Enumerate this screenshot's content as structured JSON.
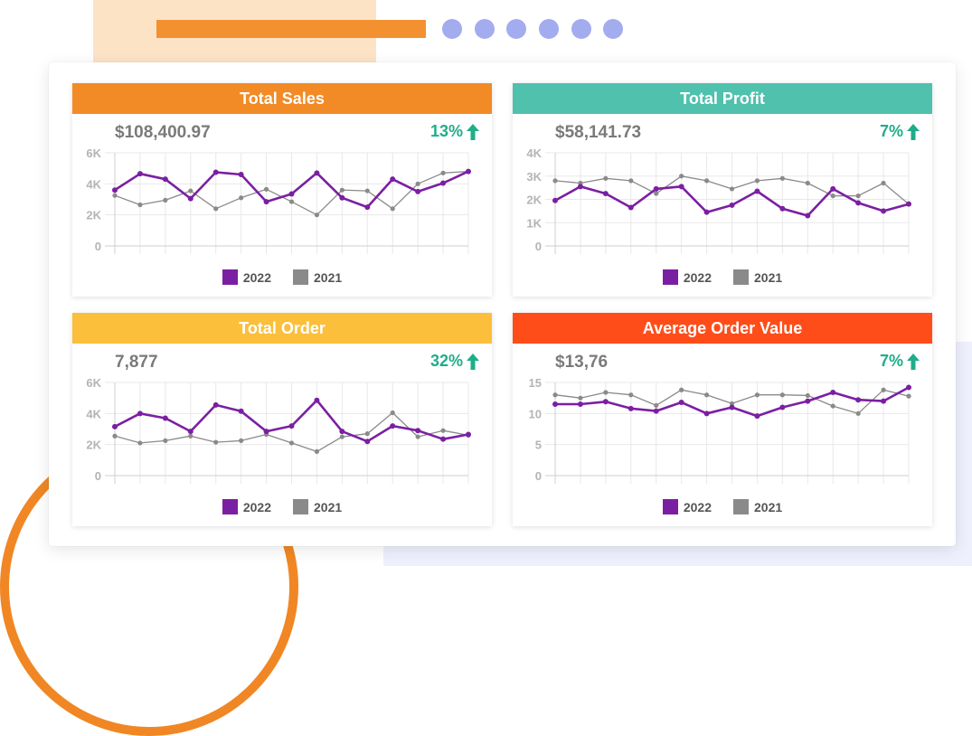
{
  "colors": {
    "series_2022": "#7b1fa2",
    "series_2021": "#8a8a8a",
    "up": "#1fad8a"
  },
  "icons": {
    "change": "arrow-up-icon"
  },
  "chart_data": [
    {
      "type": "line",
      "title": "Total Sales",
      "header_color": "#f28b26",
      "value": "$108,400.97",
      "change": "13%",
      "ylim": [
        0,
        6000
      ],
      "yticks": [
        0,
        2000,
        4000,
        6000
      ],
      "ytick_labels": [
        "0",
        "2K",
        "4K",
        "6K"
      ],
      "grid": true,
      "legend": "bottom-center",
      "series": [
        {
          "name": "2022",
          "values": [
            3600,
            4650,
            4300,
            3050,
            4750,
            4600,
            2850,
            3350,
            4700,
            3100,
            2500,
            4300,
            3500,
            4050,
            4800
          ]
        },
        {
          "name": "2021",
          "values": [
            3250,
            2650,
            2950,
            3550,
            2400,
            3100,
            3650,
            2850,
            2000,
            3600,
            3550,
            2400,
            4000,
            4700,
            4800
          ]
        }
      ]
    },
    {
      "type": "line",
      "title": "Total Profit",
      "header_color": "#4fc1ad",
      "value": "$58,141.73",
      "change": "7%",
      "ylim": [
        0,
        4000
      ],
      "yticks": [
        0,
        1000,
        2000,
        3000,
        4000
      ],
      "ytick_labels": [
        "0",
        "1K",
        "2K",
        "3K",
        "4K"
      ],
      "grid": true,
      "legend": "bottom-center",
      "series": [
        {
          "name": "2022",
          "values": [
            1950,
            2550,
            2250,
            1650,
            2450,
            2550,
            1450,
            1750,
            2350,
            1600,
            1300,
            2450,
            1850,
            1500,
            1800
          ]
        },
        {
          "name": "2021",
          "values": [
            2800,
            2700,
            2900,
            2800,
            2250,
            3000,
            2800,
            2450,
            2800,
            2900,
            2700,
            2150,
            2150,
            2700,
            1800
          ]
        }
      ]
    },
    {
      "type": "line",
      "title": "Total Order",
      "header_color": "#fbbf3c",
      "value": "7,877",
      "change": "32%",
      "ylim": [
        0,
        6000
      ],
      "yticks": [
        0,
        2000,
        4000,
        6000
      ],
      "ytick_labels": [
        "0",
        "2K",
        "4K",
        "6K"
      ],
      "grid": true,
      "legend": "bottom-center",
      "series": [
        {
          "name": "2022",
          "values": [
            3150,
            4000,
            3700,
            2850,
            4550,
            4150,
            2850,
            3200,
            4850,
            2850,
            2200,
            3200,
            2900,
            2350,
            2650
          ]
        },
        {
          "name": "2021",
          "values": [
            2550,
            2100,
            2250,
            2550,
            2150,
            2250,
            2650,
            2100,
            1550,
            2500,
            2700,
            4050,
            2500,
            2900,
            2600
          ]
        }
      ]
    },
    {
      "type": "line",
      "title": "Average Order Value",
      "header_color": "#ff4d1a",
      "value": "$13,76",
      "change": "7%",
      "ylim": [
        0,
        15
      ],
      "yticks": [
        0,
        5,
        10,
        15
      ],
      "ytick_labels": [
        "0",
        "5",
        "10",
        "15"
      ],
      "grid": true,
      "legend": "bottom-center",
      "series": [
        {
          "name": "2022",
          "values": [
            11.5,
            11.5,
            11.9,
            10.8,
            10.4,
            11.8,
            10.0,
            11.0,
            9.6,
            11.0,
            12.0,
            13.4,
            12.2,
            12.0,
            14.2
          ]
        },
        {
          "name": "2021",
          "values": [
            13.0,
            12.5,
            13.4,
            13.0,
            11.3,
            13.8,
            13.0,
            11.6,
            13.0,
            13.0,
            12.9,
            11.2,
            10.0,
            13.8,
            12.8
          ]
        }
      ]
    }
  ]
}
